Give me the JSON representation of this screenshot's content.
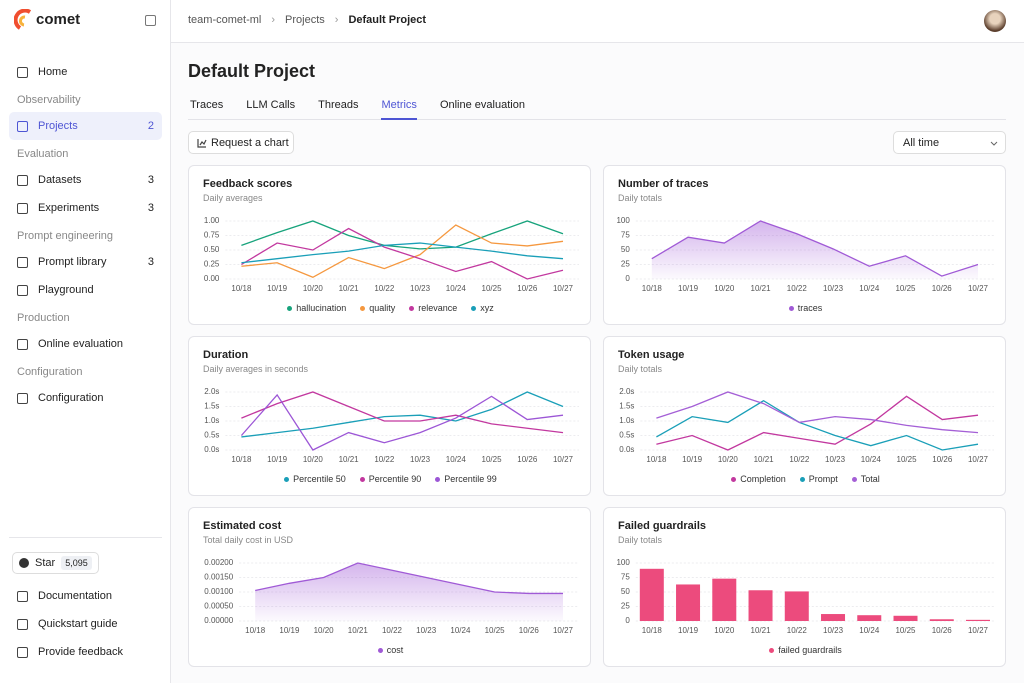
{
  "logo": "comet",
  "sidebar": {
    "home": "Home",
    "sections": [
      {
        "title": "Observability",
        "items": [
          {
            "label": "Projects",
            "count": 2
          }
        ]
      },
      {
        "title": "Evaluation",
        "items": [
          {
            "label": "Datasets",
            "count": 3
          },
          {
            "label": "Experiments",
            "count": 3
          }
        ]
      },
      {
        "title": "Prompt engineering",
        "items": [
          {
            "label": "Prompt library",
            "count": 3
          },
          {
            "label": "Playground"
          }
        ]
      },
      {
        "title": "Production",
        "items": [
          {
            "label": "Online evaluation"
          }
        ]
      },
      {
        "title": "Configuration",
        "items": [
          {
            "label": "Configuration"
          }
        ]
      }
    ],
    "active_item": "Projects",
    "star": {
      "label": "Star",
      "count": "5,095"
    },
    "footer": [
      "Documentation",
      "Quickstart guide",
      "Provide feedback"
    ]
  },
  "breadcrumb": [
    "team-comet-ml",
    "Projects",
    "Default Project"
  ],
  "title": "Default Project",
  "tabs": [
    "Traces",
    "LLM Calls",
    "Threads",
    "Metrics",
    "Online evaluation"
  ],
  "active_tab": "Metrics",
  "request_button": "Request a chart",
  "time_filter": "All time",
  "chart_data": [
    {
      "type": "line",
      "title": "Feedback scores",
      "subtitle": "Daily averages",
      "grid": true,
      "categories": [
        "10/18",
        "10/19",
        "10/20",
        "10/21",
        "10/22",
        "10/23",
        "10/24",
        "10/25",
        "10/26",
        "10/27"
      ],
      "ylim": [
        0,
        1
      ],
      "yticks": [
        {
          "value": 0,
          "label": "0.00"
        },
        {
          "value": 0.25,
          "label": "0.25"
        },
        {
          "value": 0.5,
          "label": "0.50"
        },
        {
          "value": 0.75,
          "label": "0.75"
        },
        {
          "value": 1,
          "label": "1.00"
        }
      ],
      "series": [
        {
          "name": "hallucination",
          "color": "#17a37c",
          "values": [
            0.58,
            0.8,
            1.0,
            0.75,
            0.58,
            0.52,
            0.55,
            0.78,
            1.0,
            0.78
          ]
        },
        {
          "name": "quality",
          "color": "#f5983f",
          "values": [
            0.22,
            0.28,
            0.03,
            0.37,
            0.18,
            0.42,
            0.93,
            0.62,
            0.57,
            0.65
          ]
        },
        {
          "name": "relevance",
          "color": "#c2389f",
          "values": [
            0.25,
            0.62,
            0.5,
            0.87,
            0.55,
            0.35,
            0.13,
            0.3,
            0.0,
            0.15
          ]
        },
        {
          "name": "xyz",
          "color": "#1a9fb8",
          "values": [
            0.28,
            0.35,
            0.42,
            0.48,
            0.58,
            0.62,
            0.55,
            0.48,
            0.4,
            0.35
          ]
        }
      ]
    },
    {
      "type": "area",
      "title": "Number of traces",
      "subtitle": "Daily totals",
      "grid": true,
      "categories": [
        "10/18",
        "10/19",
        "10/20",
        "10/21",
        "10/22",
        "10/23",
        "10/24",
        "10/25",
        "10/26",
        "10/27"
      ],
      "ylim": [
        0,
        100
      ],
      "yticks": [
        0,
        25,
        50,
        75,
        100
      ],
      "series": [
        {
          "name": "traces",
          "color": "#a05ad6",
          "values": [
            35,
            72,
            62,
            100,
            78,
            52,
            22,
            40,
            5,
            25
          ]
        }
      ]
    },
    {
      "type": "line",
      "title": "Duration",
      "subtitle": "Daily averages in seconds",
      "grid": true,
      "categories": [
        "10/18",
        "10/19",
        "10/20",
        "10/21",
        "10/22",
        "10/23",
        "10/24",
        "10/25",
        "10/26",
        "10/27"
      ],
      "ylim": [
        0,
        2
      ],
      "yticks": [
        {
          "value": 0,
          "label": "0.0s"
        },
        {
          "value": 0.5,
          "label": "0.5s"
        },
        {
          "value": 1,
          "label": "1.0s"
        },
        {
          "value": 1.5,
          "label": "1.5s"
        },
        {
          "value": 2,
          "label": "2.0s"
        }
      ],
      "series": [
        {
          "name": "Percentile 50",
          "color": "#1a9fb8",
          "values": [
            0.45,
            0.6,
            0.75,
            0.95,
            1.15,
            1.2,
            1.0,
            1.4,
            2.0,
            1.5
          ]
        },
        {
          "name": "Percentile 90",
          "color": "#c2389f",
          "values": [
            1.1,
            1.6,
            2.0,
            1.5,
            1.0,
            1.0,
            1.2,
            0.9,
            0.75,
            0.6
          ]
        },
        {
          "name": "Percentile 99",
          "color": "#9c56d6",
          "values": [
            0.5,
            1.9,
            0.0,
            0.6,
            0.25,
            0.6,
            1.1,
            1.85,
            1.05,
            1.2
          ]
        }
      ]
    },
    {
      "type": "line",
      "title": "Token usage",
      "subtitle": "Daily totals",
      "grid": true,
      "categories": [
        "10/18",
        "10/19",
        "10/20",
        "10/21",
        "10/22",
        "10/23",
        "10/24",
        "10/25",
        "10/26",
        "10/27"
      ],
      "ylim": [
        0,
        2
      ],
      "yticks": [
        {
          "value": 0,
          "label": "0.0s"
        },
        {
          "value": 0.5,
          "label": "0.5s"
        },
        {
          "value": 1,
          "label": "1.0s"
        },
        {
          "value": 1.5,
          "label": "1.5s"
        },
        {
          "value": 2,
          "label": "2.0s"
        }
      ],
      "series": [
        {
          "name": "Completion",
          "color": "#c2389f",
          "values": [
            0.2,
            0.5,
            0.0,
            0.6,
            0.4,
            0.2,
            0.9,
            1.85,
            1.05,
            1.2
          ]
        },
        {
          "name": "Prompt",
          "color": "#1a9fb8",
          "values": [
            0.45,
            1.15,
            0.95,
            1.7,
            0.95,
            0.5,
            0.15,
            0.5,
            0.0,
            0.2
          ]
        },
        {
          "name": "Total",
          "color": "#a45fd6",
          "values": [
            1.1,
            1.5,
            2.0,
            1.6,
            0.95,
            1.15,
            1.05,
            0.85,
            0.7,
            0.6
          ]
        }
      ]
    },
    {
      "type": "area",
      "title": "Estimated cost",
      "subtitle": "Total daily cost in USD",
      "grid": true,
      "categories": [
        "10/18",
        "10/19",
        "10/20",
        "10/21",
        "10/22",
        "10/23",
        "10/24",
        "10/25",
        "10/26",
        "10/27"
      ],
      "ylim": [
        0,
        0.002
      ],
      "yticks": [
        {
          "value": 0,
          "label": "0.00000"
        },
        {
          "value": 0.0005,
          "label": "0.00050"
        },
        {
          "value": 0.001,
          "label": "0.00100"
        },
        {
          "value": 0.0015,
          "label": "0.00150"
        },
        {
          "value": 0.002,
          "label": "0.00200"
        }
      ],
      "series": [
        {
          "name": "cost",
          "color": "#a05ad6",
          "values": [
            0.00105,
            0.0013,
            0.0015,
            0.002,
            0.00175,
            0.0015,
            0.00125,
            0.001,
            0.00095,
            0.00095
          ]
        }
      ]
    },
    {
      "type": "bar",
      "title": "Failed guardrails",
      "subtitle": "Daily totals",
      "grid": true,
      "categories": [
        "10/18",
        "10/19",
        "10/20",
        "10/21",
        "10/22",
        "10/23",
        "10/24",
        "10/25",
        "10/26",
        "10/27"
      ],
      "ylim": [
        0,
        100
      ],
      "yticks": [
        0,
        25,
        50,
        75,
        100
      ],
      "series": [
        {
          "name": "failed guardrails",
          "color": "#ec4b7d",
          "values": [
            90,
            63,
            73,
            53,
            51,
            12,
            10,
            9,
            3,
            2
          ]
        }
      ]
    }
  ]
}
